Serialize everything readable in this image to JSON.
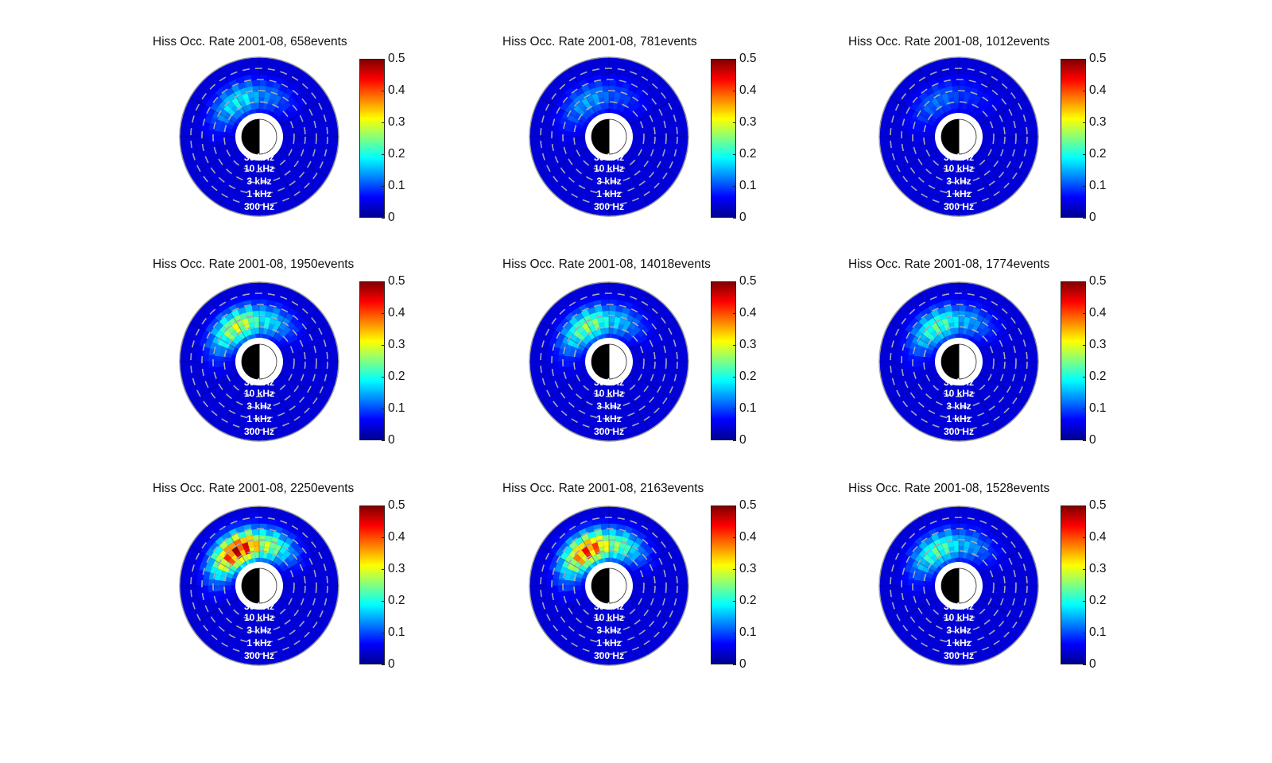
{
  "figure": {
    "colorbar": {
      "ticks": [
        "0.5",
        "0.4",
        "0.3",
        "0.2",
        "0.1",
        "0"
      ],
      "range": [
        0,
        0.5
      ],
      "colormap": "jet"
    },
    "frequency_labels": [
      "30 kHz",
      "10 kHz",
      "3 kHz",
      "1 kHz",
      "300 Hz"
    ],
    "panels": [
      {
        "title": "Hiss Occ. Rate 2001-08, 658events"
      },
      {
        "title": "Hiss Occ. Rate 2001-08, 781events"
      },
      {
        "title": "Hiss Occ. Rate 2001-08, 1012events"
      },
      {
        "title": "Hiss Occ. Rate 2001-08, 1950events"
      },
      {
        "title": "Hiss Occ. Rate 2001-08, 14018events"
      },
      {
        "title": "Hiss Occ. Rate 2001-08, 1774events"
      },
      {
        "title": "Hiss Occ. Rate 2001-08, 2250events"
      },
      {
        "title": "Hiss Occ. Rate 2001-08, 2163events"
      },
      {
        "title": "Hiss Occ. Rate 2001-08, 1528events"
      }
    ]
  },
  "chart_data": [
    {
      "type": "heatmap",
      "subtype": "polar",
      "title": "Hiss Occ. Rate 2001-08, 658events",
      "events": 658,
      "colorbar_range": [
        0,
        0.5
      ],
      "colorbar_ticks": [
        0,
        0.1,
        0.2,
        0.3,
        0.4,
        0.5
      ],
      "radial_labels": [
        "30 kHz",
        "10 kHz",
        "3 kHz",
        "1 kHz",
        "300 Hz"
      ],
      "peak_value_approx": 0.2,
      "peak_location": "upper-left (pre-noon/dawn sector), inner rings"
    },
    {
      "type": "heatmap",
      "subtype": "polar",
      "title": "Hiss Occ. Rate 2001-08, 781events",
      "events": 781,
      "colorbar_range": [
        0,
        0.5
      ],
      "colorbar_ticks": [
        0,
        0.1,
        0.2,
        0.3,
        0.4,
        0.5
      ],
      "radial_labels": [
        "30 kHz",
        "10 kHz",
        "3 kHz",
        "1 kHz",
        "300 Hz"
      ],
      "peak_value_approx": 0.15,
      "peak_location": "upper-left, inner rings"
    },
    {
      "type": "heatmap",
      "subtype": "polar",
      "title": "Hiss Occ. Rate 2001-08, 1012events",
      "events": 1012,
      "colorbar_range": [
        0,
        0.5
      ],
      "colorbar_ticks": [
        0,
        0.1,
        0.2,
        0.3,
        0.4,
        0.5
      ],
      "radial_labels": [
        "30 kHz",
        "10 kHz",
        "3 kHz",
        "1 kHz",
        "300 Hz"
      ],
      "peak_value_approx": 0.12,
      "peak_location": "upper half, inner rings"
    },
    {
      "type": "heatmap",
      "subtype": "polar",
      "title": "Hiss Occ. Rate 2001-08, 1950events",
      "events": 1950,
      "colorbar_range": [
        0,
        0.5
      ],
      "colorbar_ticks": [
        0,
        0.1,
        0.2,
        0.3,
        0.4,
        0.5
      ],
      "radial_labels": [
        "30 kHz",
        "10 kHz",
        "3 kHz",
        "1 kHz",
        "300 Hz"
      ],
      "peak_value_approx": 0.32,
      "peak_location": "upper-left, inner rings"
    },
    {
      "type": "heatmap",
      "subtype": "polar",
      "title": "Hiss Occ. Rate 2001-08, 14018events",
      "events": 14018,
      "colorbar_range": [
        0,
        0.5
      ],
      "colorbar_ticks": [
        0,
        0.1,
        0.2,
        0.3,
        0.4,
        0.5
      ],
      "radial_labels": [
        "30 kHz",
        "10 kHz",
        "3 kHz",
        "1 kHz",
        "300 Hz"
      ],
      "peak_value_approx": 0.28,
      "peak_location": "upper-left, inner rings"
    },
    {
      "type": "heatmap",
      "subtype": "polar",
      "title": "Hiss Occ. Rate 2001-08, 1774events",
      "events": 1774,
      "colorbar_range": [
        0,
        0.5
      ],
      "colorbar_ticks": [
        0,
        0.1,
        0.2,
        0.3,
        0.4,
        0.5
      ],
      "radial_labels": [
        "30 kHz",
        "10 kHz",
        "3 kHz",
        "1 kHz",
        "300 Hz"
      ],
      "peak_value_approx": 0.25,
      "peak_location": "upper half, inner rings"
    },
    {
      "type": "heatmap",
      "subtype": "polar",
      "title": "Hiss Occ. Rate 2001-08, 2250events",
      "events": 2250,
      "colorbar_range": [
        0,
        0.5
      ],
      "colorbar_ticks": [
        0,
        0.1,
        0.2,
        0.3,
        0.4,
        0.5
      ],
      "radial_labels": [
        "30 kHz",
        "10 kHz",
        "3 kHz",
        "1 kHz",
        "300 Hz"
      ],
      "peak_value_approx": 0.5,
      "peak_location": "upper-left, inner-middle rings"
    },
    {
      "type": "heatmap",
      "subtype": "polar",
      "title": "Hiss Occ. Rate 2001-08, 2163events",
      "events": 2163,
      "colorbar_range": [
        0,
        0.5
      ],
      "colorbar_ticks": [
        0,
        0.1,
        0.2,
        0.3,
        0.4,
        0.5
      ],
      "radial_labels": [
        "30 kHz",
        "10 kHz",
        "3 kHz",
        "1 kHz",
        "300 Hz"
      ],
      "peak_value_approx": 0.45,
      "peak_location": "upper-left, inner rings"
    },
    {
      "type": "heatmap",
      "subtype": "polar",
      "title": "Hiss Occ. Rate 2001-08, 1528events",
      "events": 1528,
      "colorbar_range": [
        0,
        0.5
      ],
      "colorbar_ticks": [
        0,
        0.1,
        0.2,
        0.3,
        0.4,
        0.5
      ],
      "radial_labels": [
        "30 kHz",
        "10 kHz",
        "3 kHz",
        "1 kHz",
        "300 Hz"
      ],
      "peak_value_approx": 0.25,
      "peak_location": "upper half, inner rings"
    }
  ]
}
